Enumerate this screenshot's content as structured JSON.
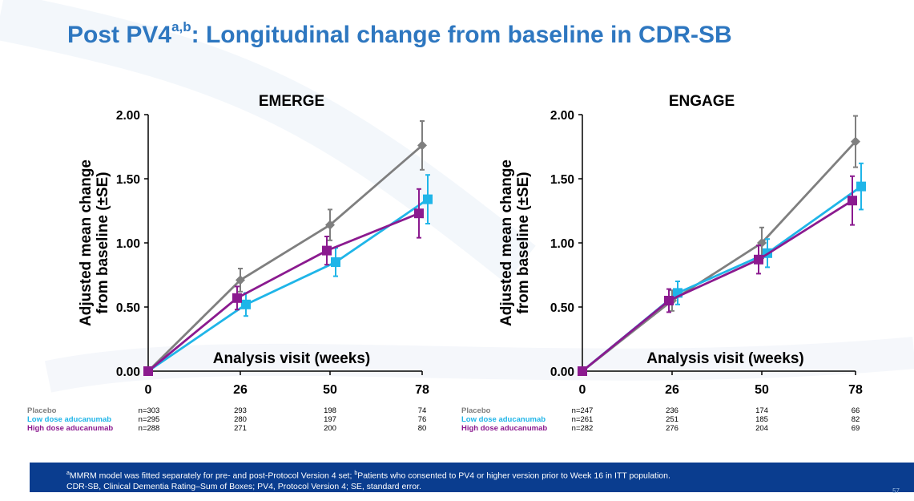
{
  "slide": {
    "title_main": "Post PV4",
    "title_sup": "a,b",
    "title_rest": ": Longitudinal change from baseline in CDR-SB",
    "page_number": "57"
  },
  "colors": {
    "title": "#2e77c0",
    "placebo": "#7f7f7f",
    "low_dose": "#1fb5e8",
    "high_dose": "#8b1a8f",
    "footnote_bg": "#0a3d8f"
  },
  "footnotes": {
    "line1_sup_a": "a",
    "line1_a": "MMRM model was fitted separately for pre- and post-Protocol Version 4 set; ",
    "line1_sup_b": "b",
    "line1_b": "Patients who consented to PV4 or higher version prior to Week 16 in ITT population.",
    "line2": "CDR-SB, Clinical Dementia Rating–Sum of Boxes; PV4, Protocol Version 4; SE, standard error."
  },
  "chart_data": [
    {
      "type": "line",
      "title": "EMERGE",
      "xlabel": "Analysis visit (weeks)",
      "ylabel": "Adjusted mean change from baseline (±SE)",
      "x": [
        0,
        26,
        50,
        78
      ],
      "x_tick_labels": [
        "0",
        "26",
        "50",
        "78"
      ],
      "ylim": [
        0,
        2
      ],
      "y_ticks": [
        0,
        0.5,
        1,
        1.5,
        2
      ],
      "y_tick_labels": [
        "0.00",
        "0.50",
        "1.00",
        "1.50",
        "2.00"
      ],
      "grid": false,
      "series": [
        {
          "name": "Placebo",
          "color": "#7f7f7f",
          "marker": "diamond",
          "values": [
            0,
            0.71,
            1.14,
            1.76
          ],
          "se": [
            0,
            0.09,
            0.12,
            0.19
          ],
          "n": [
            "n=303",
            "293",
            "198",
            "74"
          ]
        },
        {
          "name": "Low dose aducanumab",
          "color": "#1fb5e8",
          "marker": "square",
          "values": [
            0,
            0.52,
            0.85,
            1.34
          ],
          "se": [
            0,
            0.09,
            0.11,
            0.19
          ],
          "n": [
            "n=295",
            "280",
            "197",
            "76"
          ]
        },
        {
          "name": "High dose aducanumab",
          "color": "#8b1a8f",
          "marker": "square",
          "values": [
            0,
            0.57,
            0.94,
            1.23
          ],
          "se": [
            0,
            0.09,
            0.11,
            0.19
          ],
          "n": [
            "n=288",
            "271",
            "200",
            "80"
          ]
        }
      ]
    },
    {
      "type": "line",
      "title": "ENGAGE",
      "xlabel": "Analysis visit (weeks)",
      "ylabel": "Adjusted mean change from baseline (±SE)",
      "x": [
        0,
        26,
        50,
        78
      ],
      "x_tick_labels": [
        "0",
        "26",
        "50",
        "78"
      ],
      "ylim": [
        0,
        2
      ],
      "y_ticks": [
        0,
        0.5,
        1,
        1.5,
        2
      ],
      "y_tick_labels": [
        "0.00",
        "0.50",
        "1.00",
        "1.50",
        "2.00"
      ],
      "grid": false,
      "series": [
        {
          "name": "Placebo",
          "color": "#7f7f7f",
          "marker": "diamond",
          "values": [
            0,
            0.55,
            1.0,
            1.79
          ],
          "se": [
            0,
            0.08,
            0.12,
            0.2
          ],
          "n": [
            "n=247",
            "236",
            "174",
            "66"
          ]
        },
        {
          "name": "Low dose aducanumab",
          "color": "#1fb5e8",
          "marker": "square",
          "values": [
            0,
            0.61,
            0.92,
            1.44
          ],
          "se": [
            0,
            0.09,
            0.11,
            0.18
          ],
          "n": [
            "n=261",
            "251",
            "185",
            "82"
          ]
        },
        {
          "name": "High dose aducanumab",
          "color": "#8b1a8f",
          "marker": "square",
          "values": [
            0,
            0.55,
            0.87,
            1.33
          ],
          "se": [
            0,
            0.09,
            0.11,
            0.19
          ],
          "n": [
            "n=282",
            "276",
            "204",
            "69"
          ]
        }
      ]
    }
  ]
}
